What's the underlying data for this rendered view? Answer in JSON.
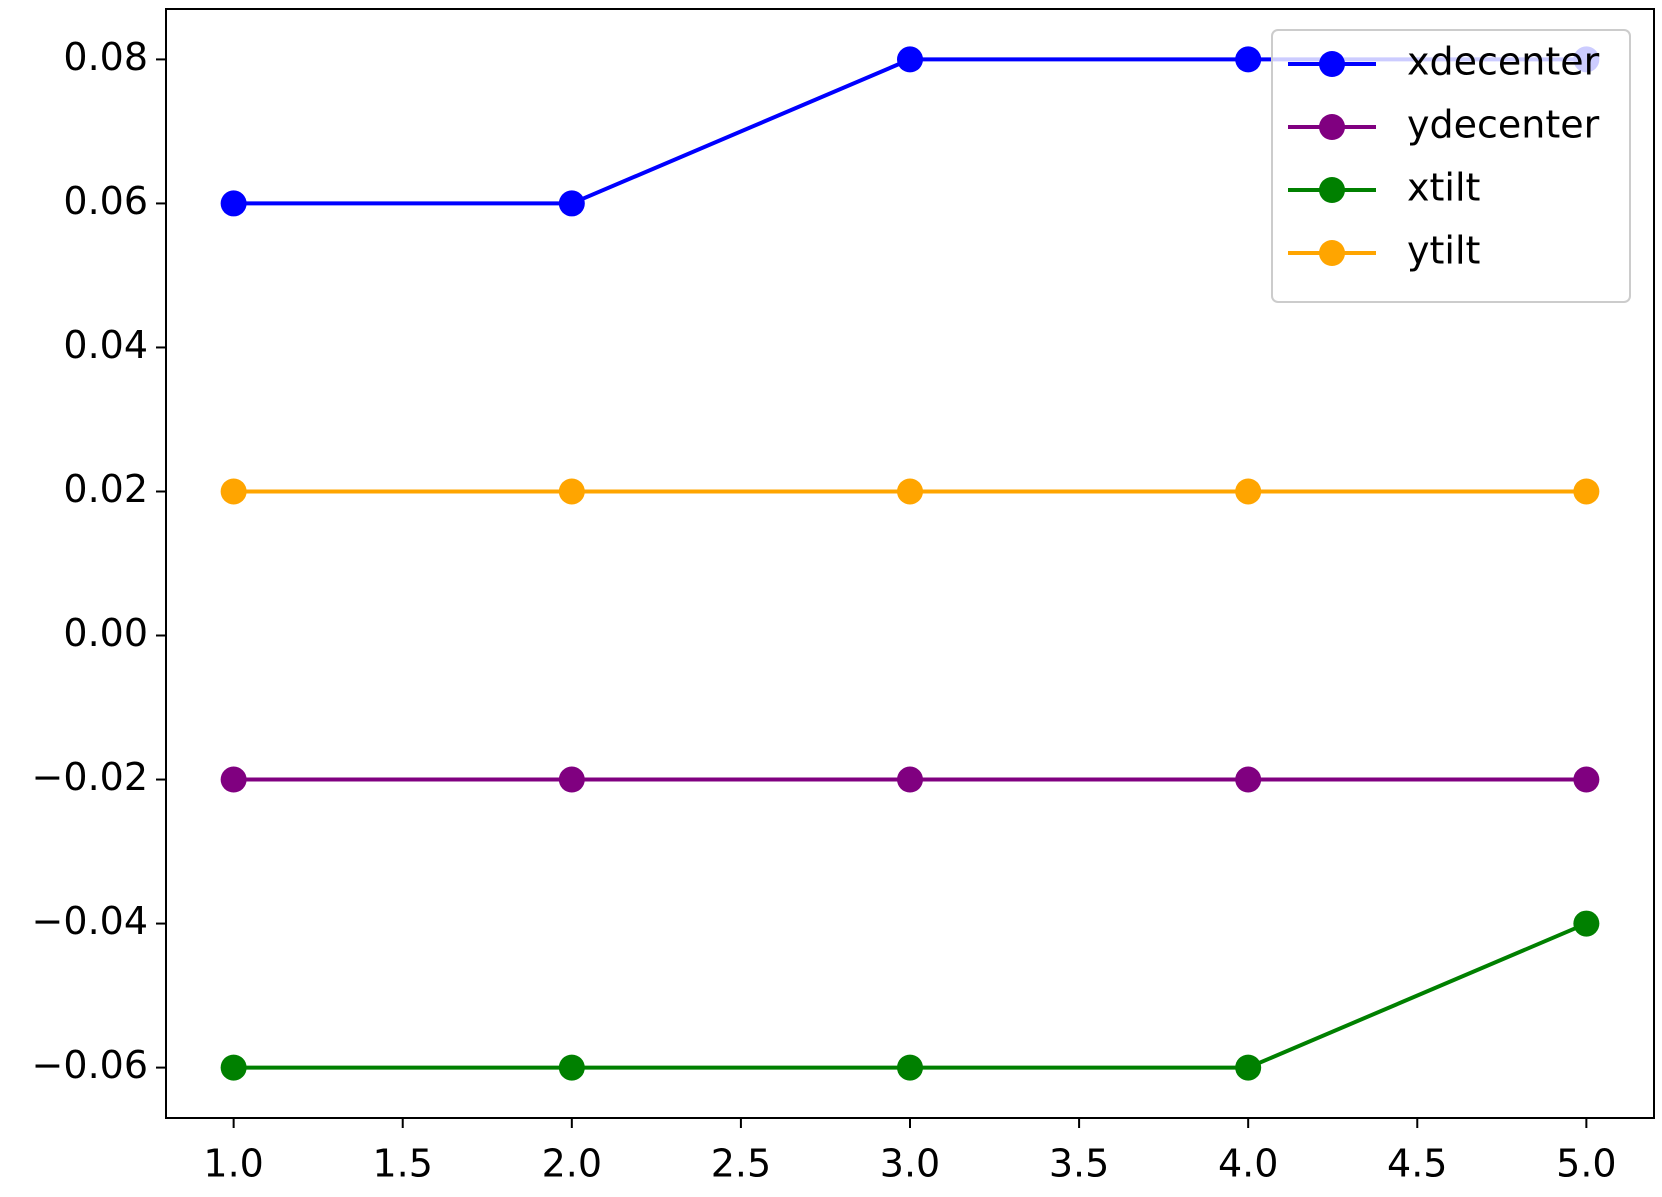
{
  "chart_data": {
    "type": "line",
    "x": [
      1,
      2,
      3,
      4,
      5
    ],
    "series": [
      {
        "name": "xdecenter",
        "color": "#0000ff",
        "values": [
          0.06,
          0.06,
          0.08,
          0.08,
          0.08
        ]
      },
      {
        "name": "ydecenter",
        "color": "#800080",
        "values": [
          -0.02,
          -0.02,
          -0.02,
          -0.02,
          -0.02
        ]
      },
      {
        "name": "xtilt",
        "color": "#008000",
        "values": [
          -0.06,
          -0.06,
          -0.06,
          -0.06,
          -0.04
        ]
      },
      {
        "name": "ytilt",
        "color": "#ffa500",
        "values": [
          0.02,
          0.02,
          0.02,
          0.02,
          0.02
        ]
      }
    ],
    "xlim": [
      0.8,
      5.2
    ],
    "xticks": [
      {
        "value": 1,
        "label": "1.0"
      },
      1.5,
      {
        "value": 2,
        "label": "2.0"
      },
      2.5,
      {
        "value": 3,
        "label": "3.0"
      },
      3.5,
      {
        "value": 4,
        "label": "4.0"
      },
      4.5,
      {
        "value": 5,
        "label": "5.0"
      }
    ],
    "ylim": [
      -0.067,
      0.087
    ],
    "yticks": [
      {
        "value": -0.06,
        "label": "−0.06"
      },
      {
        "value": -0.04,
        "label": "−0.04"
      },
      {
        "value": -0.02,
        "label": "−0.02"
      },
      {
        "value": 0,
        "label": "0.00"
      },
      0.02,
      0.04,
      0.06,
      0.08
    ],
    "grid": false,
    "legend": "upper right"
  }
}
